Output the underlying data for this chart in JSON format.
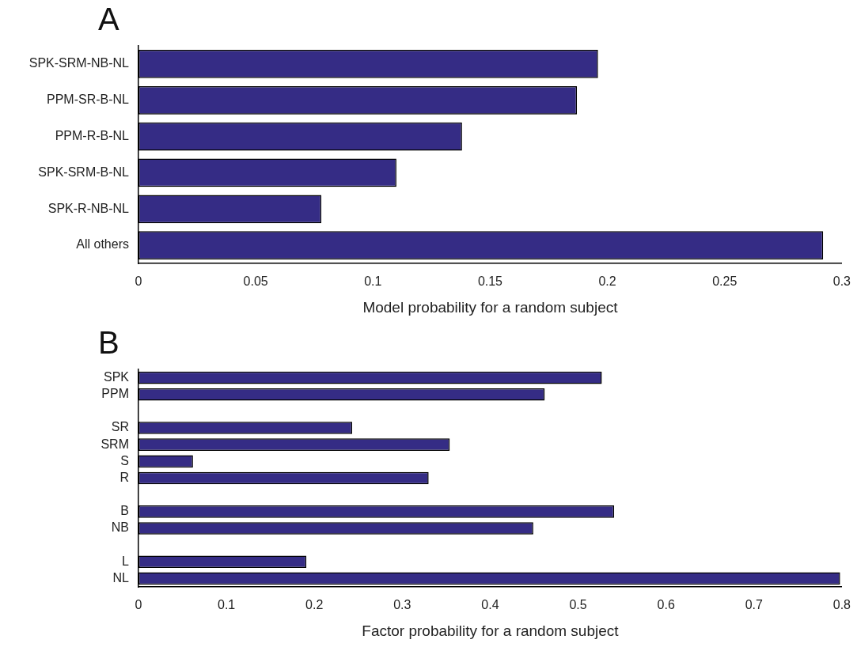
{
  "chart_data": [
    {
      "type": "bar",
      "orientation": "horizontal",
      "title": "A",
      "xlabel": "Model probability for a random subject",
      "categories": [
        "SPK-SRM-NB-NL",
        "PPM-SR-B-NL",
        "PPM-R-B-NL",
        "SPK-SRM-B-NL",
        "SPK-R-NB-NL",
        "All others"
      ],
      "values": [
        0.196,
        0.187,
        0.138,
        0.11,
        0.078,
        0.292
      ],
      "color": "#352c85",
      "xlim": [
        0,
        0.3
      ],
      "xticks": [
        0,
        0.05,
        0.1,
        0.15,
        0.2,
        0.25,
        0.3
      ],
      "grid": false,
      "legend": false
    },
    {
      "type": "bar",
      "orientation": "horizontal",
      "title": "B",
      "xlabel": "Factor probability for a random subject",
      "categories": [
        "SPK",
        "PPM",
        null,
        "SR",
        "SRM",
        "S",
        "R",
        null,
        "B",
        "NB",
        null,
        "L",
        "NL"
      ],
      "values": [
        0.527,
        0.462,
        null,
        0.243,
        0.354,
        0.062,
        0.33,
        null,
        0.541,
        0.449,
        null,
        0.191,
        0.798
      ],
      "color": "#352c85",
      "xlim": [
        0,
        0.8
      ],
      "xticks": [
        0,
        0.1,
        0.2,
        0.3,
        0.4,
        0.5,
        0.6,
        0.7,
        0.8
      ],
      "grid": false,
      "legend": false
    }
  ]
}
